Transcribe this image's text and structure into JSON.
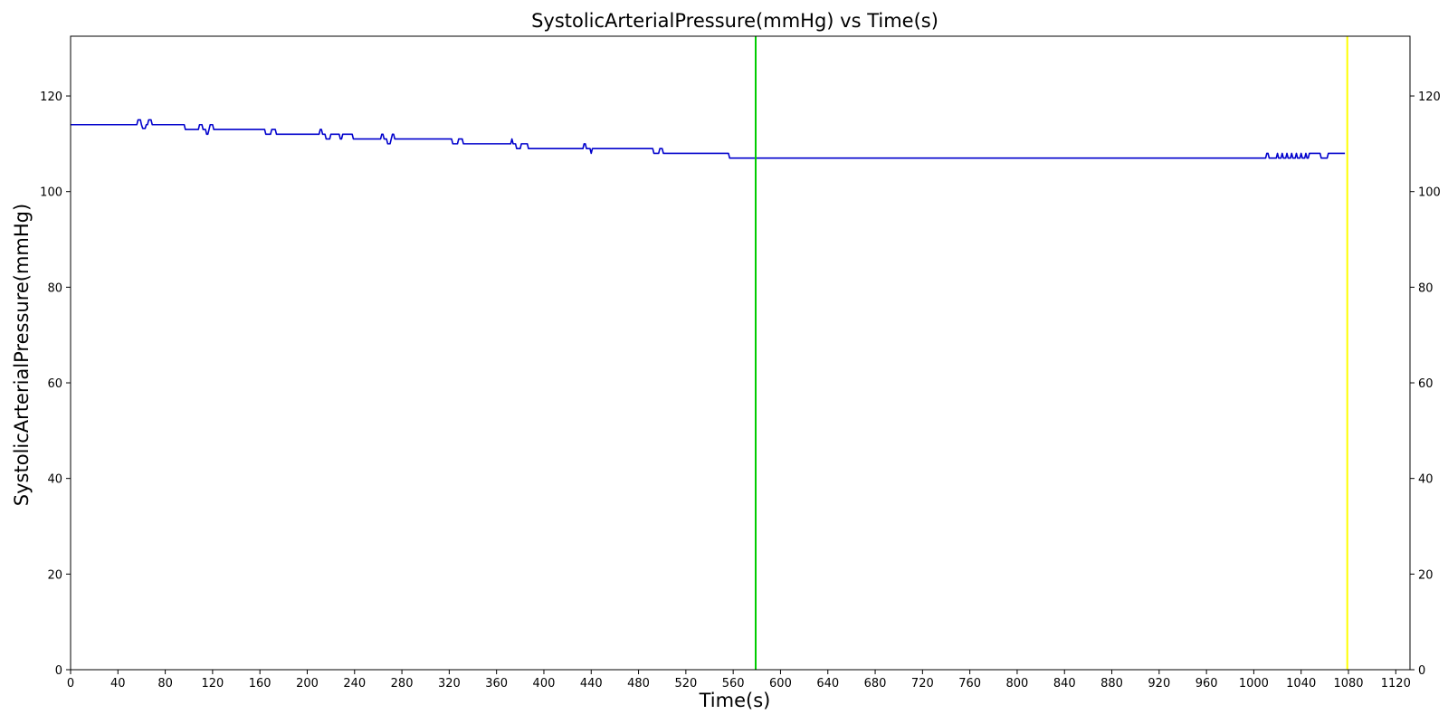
{
  "chart_data": {
    "type": "line",
    "title": "SystolicArterialPressure(mmHg) vs Time(s)",
    "xlabel": "Time(s)",
    "ylabel": "SystolicArterialPressure(mmHg)",
    "xlim": [
      0,
      1132
    ],
    "ylim": [
      0,
      132.5
    ],
    "xticks": [
      0,
      40,
      80,
      120,
      160,
      200,
      240,
      280,
      320,
      360,
      400,
      440,
      480,
      520,
      560,
      600,
      640,
      680,
      720,
      760,
      800,
      840,
      880,
      920,
      960,
      1000,
      1040,
      1080,
      1120
    ],
    "yticks": [
      0,
      20,
      40,
      60,
      80,
      100,
      120
    ],
    "right_axis_ticks": true,
    "grid": false,
    "series": [
      {
        "color": "#0000cc",
        "points": [
          [
            0,
            114
          ],
          [
            56,
            114
          ],
          [
            57,
            115
          ],
          [
            59,
            115
          ],
          [
            60,
            113.9
          ],
          [
            61,
            113.2
          ],
          [
            63,
            113.2
          ],
          [
            64,
            114
          ],
          [
            65,
            114
          ],
          [
            66,
            115
          ],
          [
            68,
            115
          ],
          [
            69,
            114
          ],
          [
            96,
            114
          ],
          [
            97,
            113
          ],
          [
            108,
            113
          ],
          [
            109,
            114
          ],
          [
            111,
            114
          ],
          [
            112,
            113
          ],
          [
            114,
            113
          ],
          [
            115,
            112
          ],
          [
            116,
            112
          ],
          [
            117,
            113
          ],
          [
            118,
            114
          ],
          [
            120,
            114
          ],
          [
            121,
            113
          ],
          [
            164,
            113
          ],
          [
            165,
            112
          ],
          [
            169,
            112
          ],
          [
            170,
            113
          ],
          [
            173,
            113
          ],
          [
            174,
            112
          ],
          [
            210,
            112
          ],
          [
            211,
            113
          ],
          [
            212,
            113
          ],
          [
            213,
            112
          ],
          [
            215,
            112
          ],
          [
            216,
            111
          ],
          [
            219,
            111
          ],
          [
            220,
            112
          ],
          [
            227,
            112
          ],
          [
            228,
            111
          ],
          [
            229,
            111
          ],
          [
            230,
            112
          ],
          [
            238,
            112
          ],
          [
            239,
            111
          ],
          [
            262,
            111
          ],
          [
            263,
            112
          ],
          [
            264,
            112
          ],
          [
            265,
            111
          ],
          [
            267,
            111
          ],
          [
            268,
            110
          ],
          [
            270,
            110
          ],
          [
            271,
            111
          ],
          [
            272,
            112
          ],
          [
            273,
            112
          ],
          [
            274,
            111
          ],
          [
            322,
            111
          ],
          [
            323,
            110
          ],
          [
            327,
            110
          ],
          [
            328,
            111
          ],
          [
            331,
            111
          ],
          [
            332,
            110
          ],
          [
            372,
            110
          ],
          [
            373,
            111
          ],
          [
            374,
            110
          ],
          [
            376,
            110
          ],
          [
            377,
            109
          ],
          [
            380,
            109
          ],
          [
            381,
            110
          ],
          [
            386,
            110
          ],
          [
            387,
            109
          ],
          [
            433,
            109
          ],
          [
            434,
            110
          ],
          [
            435,
            110
          ],
          [
            436,
            109
          ],
          [
            439,
            109
          ],
          [
            440,
            108
          ],
          [
            441,
            109
          ],
          [
            492,
            109
          ],
          [
            493,
            108
          ],
          [
            497,
            108
          ],
          [
            498,
            109
          ],
          [
            500,
            109
          ],
          [
            501,
            108
          ],
          [
            556,
            108
          ],
          [
            557,
            107
          ],
          [
            1010,
            107
          ],
          [
            1011,
            108
          ],
          [
            1012,
            108
          ],
          [
            1013,
            107
          ],
          [
            1019,
            107
          ],
          [
            1020,
            108
          ],
          [
            1021,
            107
          ],
          [
            1023,
            107
          ],
          [
            1024,
            108
          ],
          [
            1025,
            107
          ],
          [
            1027,
            107
          ],
          [
            1028,
            108
          ],
          [
            1029,
            107
          ],
          [
            1031,
            107
          ],
          [
            1032,
            108
          ],
          [
            1033,
            107
          ],
          [
            1035,
            107
          ],
          [
            1036,
            108
          ],
          [
            1037,
            107
          ],
          [
            1039,
            107
          ],
          [
            1040,
            108
          ],
          [
            1041,
            107
          ],
          [
            1043,
            107
          ],
          [
            1044,
            108
          ],
          [
            1045,
            107
          ],
          [
            1046,
            107
          ],
          [
            1047,
            108
          ],
          [
            1056,
            108
          ],
          [
            1057,
            107
          ],
          [
            1062,
            107
          ],
          [
            1063,
            108
          ],
          [
            1077,
            108
          ]
        ]
      }
    ],
    "vertical_lines": [
      {
        "x": 579,
        "color": "#00cc00"
      },
      {
        "x": 1079,
        "color": "#ffff00"
      }
    ]
  }
}
